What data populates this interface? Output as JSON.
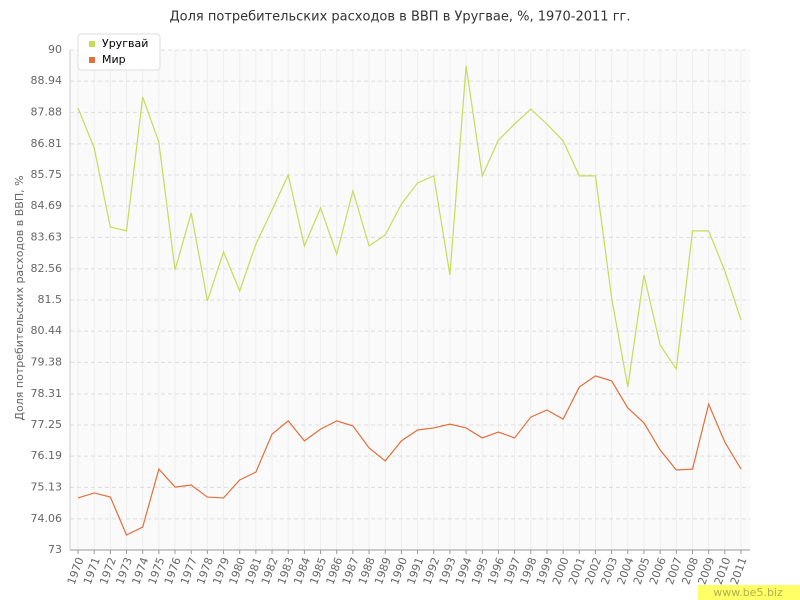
{
  "chart_data": {
    "type": "line",
    "title": "Доля потребительских расходов в ВВП в Уругвае, %, 1970-2011 гг.",
    "y_label": "Доля потребительских расходов в ВВП, %",
    "watermark": "www.be5.biz",
    "categories": [
      "1970",
      "1971",
      "1972",
      "1973",
      "1974",
      "1975",
      "1976",
      "1977",
      "1978",
      "1979",
      "1980",
      "1981",
      "1982",
      "1983",
      "1984",
      "1985",
      "1986",
      "1987",
      "1988",
      "1989",
      "1990",
      "1991",
      "1992",
      "1993",
      "1994",
      "1995",
      "1996",
      "1997",
      "1998",
      "1999",
      "2000",
      "2001",
      "2002",
      "2003",
      "2004",
      "2005",
      "2006",
      "2007",
      "2008",
      "2009",
      "2010",
      "2011"
    ],
    "series": [
      {
        "name": "Уругвай",
        "color": "#c5dc5a",
        "values": [
          88.03,
          86.67,
          83.98,
          83.85,
          88.4,
          86.87,
          82.52,
          84.46,
          81.47,
          83.13,
          81.81,
          83.4,
          84.56,
          85.75,
          83.34,
          84.63,
          83.06,
          85.21,
          83.34,
          83.71,
          84.76,
          85.48,
          85.72,
          82.35,
          89.46,
          85.72,
          86.94,
          87.48,
          87.99,
          87.48,
          86.91,
          85.72,
          85.72,
          81.57,
          78.54,
          82.35,
          79.97,
          79.15,
          83.85,
          83.85,
          82.49,
          80.82
        ]
      },
      {
        "name": "Мир",
        "color": "#e0703c",
        "values": [
          74.77,
          74.94,
          74.8,
          73.51,
          73.78,
          75.75,
          75.14,
          75.21,
          74.8,
          74.77,
          75.38,
          75.65,
          76.94,
          77.39,
          76.71,
          77.11,
          77.39,
          77.22,
          76.47,
          76.03,
          76.71,
          77.08,
          77.15,
          77.28,
          77.15,
          76.81,
          77.01,
          76.81,
          77.52,
          77.76,
          77.45,
          78.54,
          78.92,
          78.75,
          77.83,
          77.32,
          76.4,
          75.72,
          75.75,
          77.96,
          76.67,
          75.75
        ]
      }
    ],
    "ylim": [
      73,
      90
    ],
    "yticks": [
      73,
      74.06,
      75.13,
      76.19,
      77.25,
      78.31,
      79.38,
      80.44,
      81.5,
      82.56,
      83.63,
      84.69,
      85.75,
      86.81,
      87.88,
      88.94,
      90
    ],
    "grid": true,
    "legend": "top-left"
  }
}
